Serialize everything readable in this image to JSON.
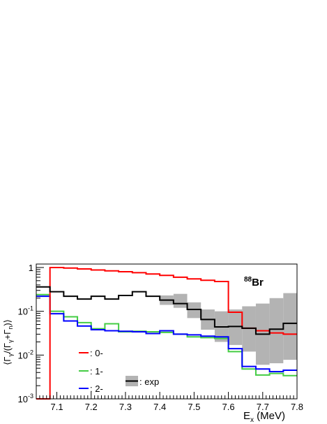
{
  "chart_data": {
    "type": "line",
    "style": "histogram-step",
    "xlabel": "E",
    "xlabel_sub": "x",
    "xlabel_unit": " (MeV)",
    "ylabel_text": "⟨Γγ/(Γγ+Γn)⟩",
    "annotation": {
      "sup": "88",
      "text": "Br"
    },
    "xlim": [
      7.04,
      7.8
    ],
    "ylim": [
      0.001,
      1.2
    ],
    "yscale": "log",
    "x_ticks": [
      "7.1",
      "7.2",
      "7.3",
      "7.4",
      "7.5",
      "7.6",
      "7.7",
      "7.8"
    ],
    "y_ticks": [
      {
        "base": "10",
        "exp": "-3",
        "value": 0.001
      },
      {
        "base": "10",
        "exp": "-2",
        "value": 0.01
      },
      {
        "base": "10",
        "exp": "-1",
        "value": 0.1
      },
      {
        "base": "1",
        "exp": "",
        "value": 1
      }
    ],
    "bin_edges": [
      7.04,
      7.08,
      7.12,
      7.16,
      7.2,
      7.24,
      7.28,
      7.32,
      7.36,
      7.4,
      7.44,
      7.48,
      7.52,
      7.56,
      7.6,
      7.64,
      7.68,
      7.72,
      7.76,
      7.8
    ],
    "series": [
      {
        "name": ": 0-",
        "color": "#ff0000",
        "values": [
          0.001,
          1.0,
          0.97,
          0.93,
          0.88,
          0.84,
          0.8,
          0.76,
          0.71,
          0.66,
          0.6,
          0.55,
          0.51,
          0.48,
          0.095,
          0.041,
          0.036,
          0.032,
          0.03
        ]
      },
      {
        "name": ": 1-",
        "color": "#44cc44",
        "values": [
          0.24,
          0.1,
          0.075,
          0.055,
          0.04,
          0.052,
          0.034,
          0.035,
          0.034,
          0.033,
          0.03,
          0.026,
          0.025,
          0.024,
          0.012,
          0.0048,
          0.0035,
          0.0038,
          0.0034
        ]
      },
      {
        "name": ": 2-",
        "color": "#0000ff",
        "values": [
          0.22,
          0.088,
          0.06,
          0.046,
          0.038,
          0.036,
          0.035,
          0.034,
          0.031,
          0.036,
          0.03,
          0.029,
          0.027,
          0.026,
          0.014,
          0.0055,
          0.0048,
          0.0042,
          0.0045
        ]
      },
      {
        "name": ": exp",
        "color": "#000000",
        "values": [
          0.36,
          0.28,
          0.22,
          0.19,
          0.22,
          0.19,
          0.23,
          0.28,
          0.22,
          0.18,
          0.15,
          0.11,
          0.065,
          0.044,
          0.045,
          0.041,
          0.03,
          0.039,
          0.053
        ],
        "band_lo": [
          null,
          null,
          null,
          null,
          null,
          null,
          null,
          null,
          null,
          0.14,
          0.12,
          0.07,
          0.038,
          0.02,
          0.017,
          0.012,
          0.006,
          0.0065,
          0.0078
        ],
        "band_hi": [
          null,
          null,
          null,
          null,
          null,
          null,
          null,
          null,
          null,
          0.23,
          0.25,
          0.16,
          0.11,
          0.1,
          0.11,
          0.13,
          0.15,
          0.2,
          0.26
        ]
      }
    ],
    "legend_placement": "bottom-left"
  },
  "colors": {
    "band": "#b3b3b3"
  }
}
